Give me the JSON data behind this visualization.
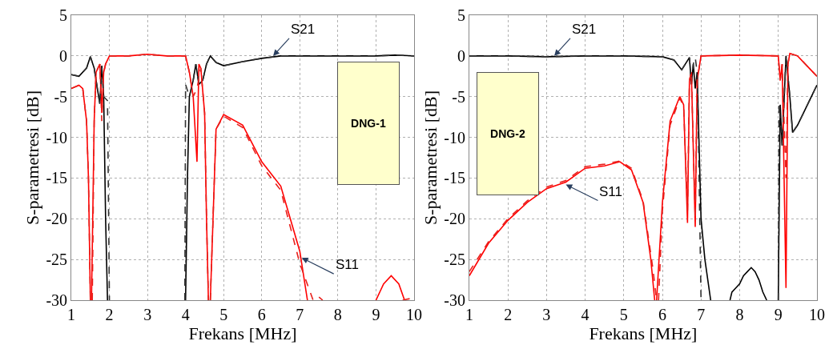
{
  "chart_data": [
    {
      "type": "line",
      "xlabel": "Frekans [MHz]",
      "ylabel": "S-parametresi [dB]",
      "xlim": [
        1,
        10
      ],
      "ylim": [
        -30,
        5
      ],
      "xticks": [
        1,
        2,
        3,
        4,
        5,
        6,
        7,
        8,
        9,
        10
      ],
      "yticks": [
        -30,
        -25,
        -20,
        -15,
        -10,
        -5,
        0,
        5
      ],
      "grid": true,
      "marker": "none",
      "annotations": [
        {
          "text": "S21",
          "x": 6.3,
          "y": 0
        },
        {
          "text": "S11",
          "x": 7.05,
          "y": -24.8
        },
        "DNG-1"
      ],
      "series": [
        {
          "color": "#000000",
          "line_style": "solid",
          "x": [
            1,
            1.2,
            1.4,
            1.5,
            1.6,
            1.7,
            1.75,
            1.8,
            1.85,
            1.9,
            1.95,
            3,
            4.0,
            4.05,
            4.1,
            4.2,
            4.27,
            4.35,
            4.45,
            4.55,
            4.65,
            4.8,
            5.0,
            5.5,
            6,
            6.5,
            7,
            8,
            9,
            9.5,
            10
          ],
          "values": [
            -2.3,
            -2.5,
            -1.5,
            -0.1,
            -1.5,
            -4.5,
            -5.8,
            -1.2,
            -5,
            -20,
            -30,
            null,
            -30,
            -15,
            -5,
            -3,
            -1,
            -3.5,
            -3,
            -1,
            0,
            -0.8,
            -1.2,
            -0.7,
            -0.3,
            0,
            0,
            0,
            0,
            0.1,
            0
          ]
        },
        {
          "color": "#333333",
          "line_style": "dashed",
          "x": [
            1,
            1.2,
            1.4,
            1.5,
            1.6,
            1.7,
            1.75,
            1.8,
            1.85,
            1.95,
            2.0,
            3,
            3.98,
            4.0,
            4.1,
            4.2,
            4.27,
            4.35,
            4.45,
            4.55,
            4.65,
            4.8,
            5.0,
            5.5,
            6,
            6.5,
            7,
            8,
            9,
            9.5,
            10
          ],
          "values": [
            -2.3,
            -2.5,
            -1.5,
            -0.1,
            -1.5,
            -4.5,
            -6,
            -1.5,
            -5,
            -5.5,
            -30,
            null,
            -30,
            -3.5,
            -5,
            -3,
            -1,
            -3.5,
            -3,
            -1,
            0,
            -0.8,
            -1.2,
            -0.7,
            -0.3,
            0,
            0,
            0,
            0,
            0.1,
            0
          ]
        },
        {
          "color": "#ff0000",
          "line_style": "solid",
          "x": [
            1,
            1.2,
            1.3,
            1.4,
            1.45,
            1.5,
            1.515,
            1.53,
            1.6,
            1.65,
            1.7,
            1.75,
            1.8,
            1.85,
            1.9,
            2.0,
            2.5,
            3,
            3.5,
            4,
            4.1,
            4.2,
            4.3,
            4.35,
            4.4,
            4.5,
            4.55,
            4.6,
            4.62,
            4.65,
            4.8,
            5,
            5.5,
            6,
            6.5,
            7,
            7.2,
            8,
            9,
            9.2,
            9.4,
            9.6,
            9.75
          ],
          "values": [
            -4,
            -3.6,
            -4,
            -8,
            -15,
            -30,
            null,
            -30,
            -8,
            -2,
            -1.5,
            -1,
            -7,
            -2,
            -1,
            0,
            0,
            0.2,
            0,
            0,
            -2,
            -5,
            -13,
            -1,
            -1.5,
            -7,
            -20,
            -30,
            null,
            -30,
            -9,
            -7.2,
            -8.5,
            -13,
            -16,
            -24,
            -30,
            null,
            -30,
            -28,
            -27,
            -28,
            -30
          ]
        },
        {
          "color": "#e8201c",
          "line_style": "dashed",
          "x": [
            1,
            1.2,
            1.3,
            1.4,
            1.45,
            1.5,
            1.52,
            1.55,
            1.6,
            1.65,
            1.7,
            1.75,
            1.8,
            1.85,
            1.9,
            2.0,
            2.5,
            3,
            3.5,
            4,
            4.1,
            4.2,
            4.3,
            4.4,
            4.5,
            4.55,
            4.6,
            4.62,
            4.65,
            4.8,
            5,
            5.5,
            6,
            6.5,
            7,
            7.35,
            7.5,
            7.6,
            8.5,
            9.7,
            10
          ],
          "values": [
            -4,
            -3.6,
            -4,
            -8,
            -15,
            -30,
            null,
            -30,
            -8,
            -2,
            -1.5,
            -1,
            -8,
            -2,
            -1,
            0,
            0,
            0.2,
            0,
            0,
            -2,
            -5,
            -4,
            -1.5,
            -7,
            -20,
            -30,
            null,
            -30,
            -9,
            -7.4,
            -8.8,
            -13.5,
            -16.5,
            -25.5,
            -30,
            -29.6,
            -30,
            null,
            -30,
            -29.7
          ]
        }
      ]
    },
    {
      "type": "line",
      "xlabel": "Frekans [MHz]",
      "ylabel": "S-parametresi [dB]",
      "xlim": [
        1,
        10
      ],
      "ylim": [
        -30,
        5
      ],
      "xticks": [
        1,
        2,
        3,
        4,
        5,
        6,
        7,
        8,
        9,
        10
      ],
      "yticks": [
        -30,
        -25,
        -20,
        -15,
        -10,
        -5,
        0,
        5
      ],
      "grid": true,
      "marker": "none",
      "annotations": [
        {
          "text": "S21",
          "x": 3.2,
          "y": 0
        },
        {
          "text": "S11",
          "x": 3.5,
          "y": -15.8
        },
        "DNG-2"
      ],
      "series": [
        {
          "color": "#000000",
          "line_style": "solid",
          "x": [
            1,
            2,
            3,
            4,
            5,
            6,
            6.3,
            6.5,
            6.7,
            6.75,
            6.8,
            6.85,
            6.9,
            7.0,
            7.1,
            7.25,
            7.5,
            7.75,
            7.8,
            7.9,
            8.0,
            8.1,
            8.2,
            8.3,
            8.4,
            8.5,
            8.6,
            8.7,
            8.8,
            9.0,
            9.05,
            9.1,
            9.2,
            9.3,
            9.37,
            9.5,
            10
          ],
          "values": [
            0,
            0,
            -0.1,
            0,
            0,
            -0.1,
            -0.5,
            -1.7,
            -0.2,
            -3.5,
            -1,
            -4,
            -2,
            -20,
            -25,
            -30,
            null,
            -30,
            -29,
            -28.5,
            -28,
            -27,
            -26.5,
            -26,
            -26.5,
            -27.5,
            -29,
            -30,
            null,
            -30,
            -6,
            -11,
            0,
            -5,
            -9.4,
            -8.5,
            -3.6
          ]
        },
        {
          "color": "#333333",
          "line_style": "dashed",
          "x": [
            1,
            2,
            3,
            4,
            5,
            6,
            6.3,
            6.5,
            6.7,
            6.75,
            6.8,
            6.85,
            6.9,
            6.95,
            7.0,
            8,
            9.0,
            9.02,
            9.1,
            9.2,
            9.3,
            9.37,
            9.5,
            10
          ],
          "values": [
            0,
            0,
            -0.1,
            0,
            0,
            -0.1,
            -0.5,
            -1.7,
            -0.2,
            -3.5,
            -1,
            -0.2,
            -2,
            -15,
            -30,
            null,
            -30,
            -6,
            -11,
            0,
            -5,
            -9.4,
            -8.5,
            -3.6
          ]
        },
        {
          "color": "#ff0000",
          "line_style": "solid",
          "x": [
            1,
            1.5,
            2,
            2.5,
            3,
            3.5,
            4,
            4.5,
            4.9,
            5.2,
            5.5,
            5.7,
            5.8,
            5.82,
            5.85,
            6.0,
            6.2,
            6.45,
            6.55,
            6.65,
            6.7,
            6.75,
            6.85,
            6.9,
            7.0,
            8,
            9,
            9.05,
            9.1,
            9.2,
            9.25,
            9.3,
            9.5,
            10
          ],
          "values": [
            -27,
            -23,
            -20.2,
            -18,
            -16.3,
            -15.5,
            -13.8,
            -13.5,
            -13,
            -14,
            -18,
            -25,
            -30,
            null,
            -30,
            -18,
            -8,
            -5,
            -6,
            -20.5,
            -3,
            -2,
            -21,
            -3,
            0,
            0.1,
            0,
            -3,
            -1,
            -28.5,
            -1,
            0.3,
            0,
            -2.5
          ]
        },
        {
          "color": "#e8201c",
          "line_style": "dashed",
          "x": [
            1,
            1.5,
            2,
            2.5,
            3,
            3.5,
            4,
            4.5,
            4.9,
            5.2,
            5.5,
            5.75,
            5.85,
            5.87,
            5.9,
            6.0,
            6.2,
            6.45,
            6.55,
            6.65,
            6.7,
            6.75,
            6.85,
            6.9,
            7.0,
            8,
            9,
            9.05,
            9.1,
            9.2,
            9.25,
            9.3,
            9.5,
            10
          ],
          "values": [
            -26.5,
            -22.8,
            -20,
            -17.8,
            -16.1,
            -15.3,
            -13.6,
            -13.3,
            -12.9,
            -13.8,
            -17.8,
            -26,
            -30,
            null,
            -30,
            -19,
            -8.5,
            -5.2,
            -6.2,
            -19,
            -3,
            -2,
            -20,
            -3,
            0,
            0.1,
            0,
            -3,
            -1,
            -15,
            -1,
            0.3,
            0,
            -2.5
          ]
        }
      ]
    }
  ]
}
